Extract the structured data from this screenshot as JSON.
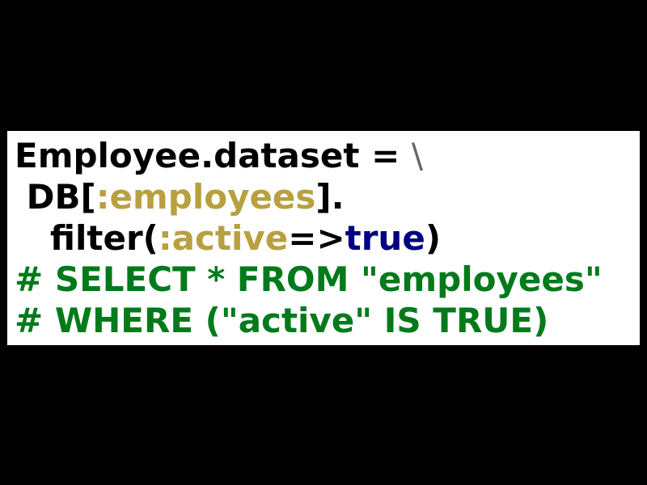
{
  "code": {
    "line1": {
      "text": "Employee.dataset = ",
      "backslash": "\\"
    },
    "line2": {
      "indent": " ",
      "db": "DB[",
      "symbol": ":employees",
      "close": "]."
    },
    "line3": {
      "indent": "   ",
      "method": "filter(",
      "symbol": ":active",
      "arrow": "=>",
      "value": "true",
      "close": ")"
    },
    "comment1": "# SELECT * FROM \"employees\"",
    "comment2": "# WHERE (\"active\" IS TRUE)"
  },
  "colors": {
    "background": "#000000",
    "panel": "#ffffff",
    "text": "#000000",
    "symbol": "#b8a040",
    "constant": "#000080",
    "comment": "#007a1a",
    "backslash": "#666666"
  }
}
